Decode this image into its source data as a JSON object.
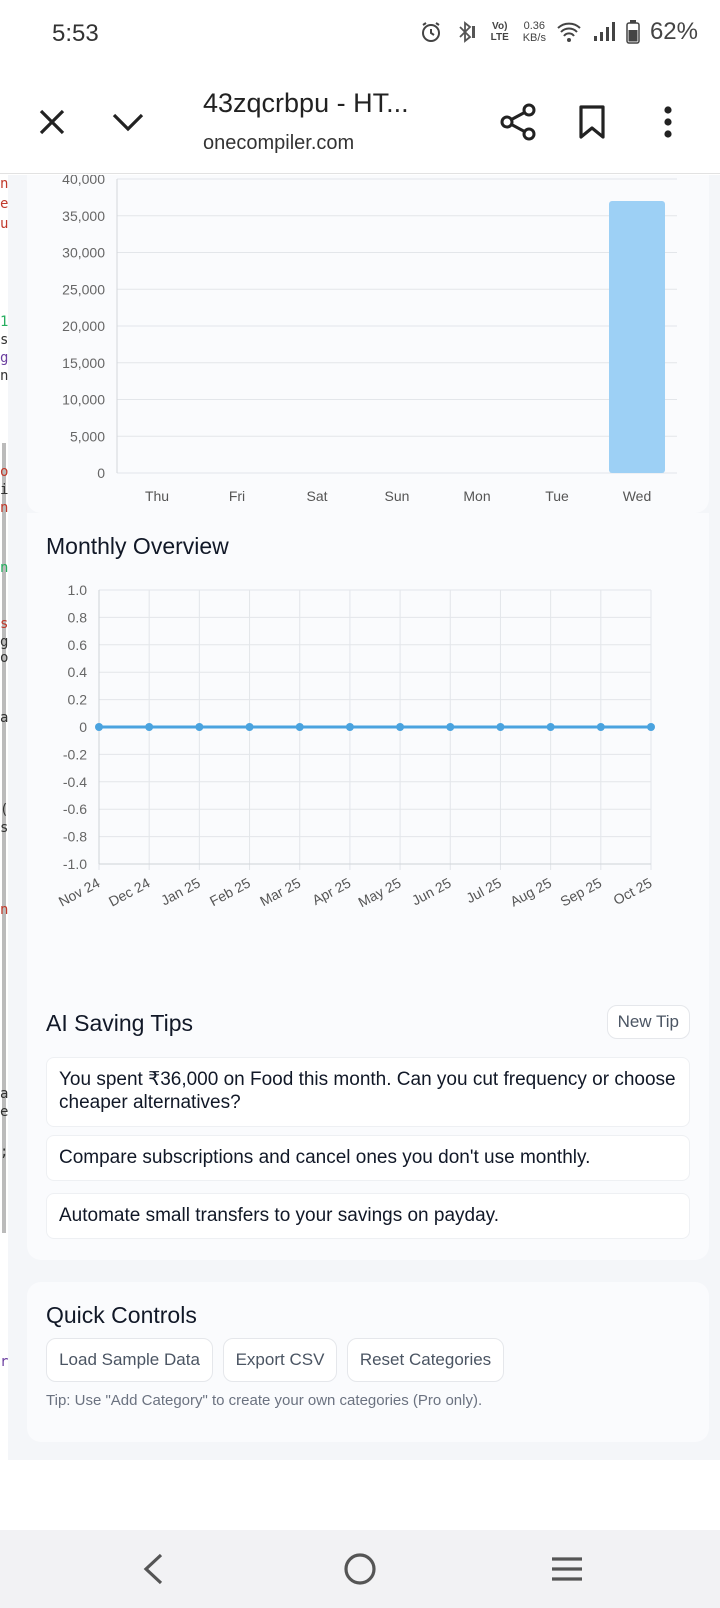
{
  "status_bar": {
    "time": "5:53",
    "net_speed_value": "0.36",
    "net_speed_unit": "KB/s",
    "battery": "62%",
    "volte_label": "Vo) LTE"
  },
  "browser": {
    "title": "43zqcrbpu - HT...",
    "url": "onecompiler.com",
    "icons": [
      "close-icon",
      "chevron-down-icon",
      "share-icon",
      "bookmark-icon",
      "more-vert-icon"
    ]
  },
  "weekly_chart": {
    "chart_data": {
      "type": "bar",
      "categories": [
        "Thu",
        "Fri",
        "Sat",
        "Sun",
        "Mon",
        "Tue",
        "Wed"
      ],
      "values": [
        0,
        0,
        0,
        0,
        0,
        0,
        37000
      ],
      "ylim": [
        0,
        40000
      ],
      "yticks": [
        "40,000",
        "35,000",
        "30,000",
        "25,000",
        "20,000",
        "15,000",
        "10,000",
        "5,000",
        "0"
      ],
      "bar_color": "#9dd0f5",
      "grid": true
    }
  },
  "monthly": {
    "title": "Monthly Overview",
    "chart_data": {
      "type": "line",
      "categories": [
        "Nov 24",
        "Dec 24",
        "Jan 25",
        "Feb 25",
        "Mar 25",
        "Apr 25",
        "May 25",
        "Jun 25",
        "Jul 25",
        "Aug 25",
        "Sep 25",
        "Oct 25"
      ],
      "values": [
        0,
        0,
        0,
        0,
        0,
        0,
        0,
        0,
        0,
        0,
        0,
        0
      ],
      "ylim": [
        -1.0,
        1.0
      ],
      "yticks": [
        "1.0",
        "0.8",
        "0.6",
        "0.4",
        "0.2",
        "0",
        "-0.2",
        "-0.4",
        "-0.6",
        "-0.8",
        "-1.0"
      ],
      "line_color": "#4aa3df",
      "grid": true
    }
  },
  "ai_tips": {
    "title": "AI Saving Tips",
    "new_tip_label": "New Tip",
    "tips": [
      "You spent ₹36,000 on Food this month. Can you cut frequency or choose cheaper alternatives?",
      "Compare subscriptions and cancel ones you don't use monthly.",
      "Automate small transfers to your savings on payday."
    ]
  },
  "quick_controls": {
    "title": "Quick Controls",
    "buttons": [
      "Load Sample Data",
      "Export CSV",
      "Reset Categories"
    ],
    "tip": "Tip: Use \"Add Category\" to create your own categories (Pro only)."
  },
  "nav": {
    "icons": [
      "back-icon",
      "home-icon",
      "recents-icon"
    ]
  },
  "left_strip_chars": [
    "n",
    "e",
    "u",
    "1",
    "s",
    "g",
    "n",
    "o",
    "i",
    "n",
    "n",
    "s",
    "g",
    "o",
    "a",
    "(",
    "s",
    "n",
    "a",
    "e",
    ";",
    "r"
  ]
}
